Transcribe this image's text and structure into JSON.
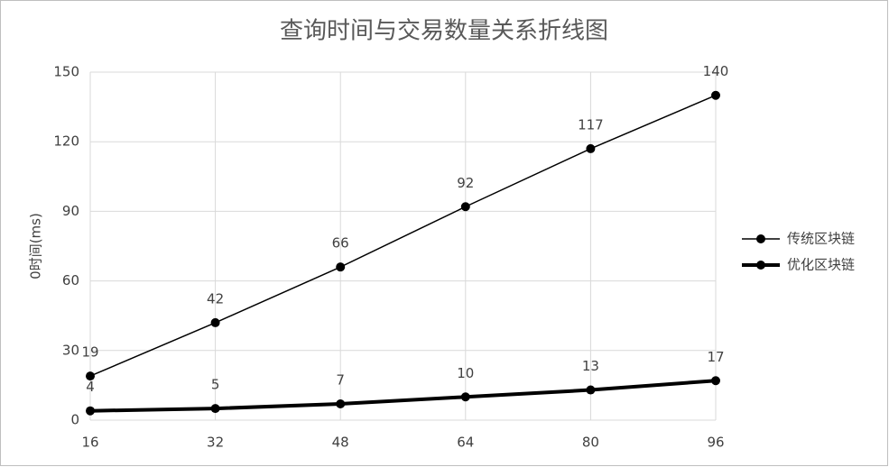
{
  "chart_data": {
    "type": "line",
    "title": "查询时间与交易数量关系折线图",
    "y_label": "0时间(ms)",
    "x": [
      16,
      32,
      48,
      64,
      80,
      96
    ],
    "series": [
      {
        "name": "传统区块链",
        "color": "#000000",
        "line_width": 1.5,
        "values": [
          19,
          42,
          66,
          92,
          117,
          140
        ]
      },
      {
        "name": "优化区块链",
        "color": "#000000",
        "line_width": 4,
        "values": [
          4,
          5,
          7,
          10,
          13,
          17
        ]
      }
    ],
    "xlim": [
      16,
      96
    ],
    "xticks": [
      16,
      32,
      48,
      64,
      80,
      96
    ],
    "ylim": [
      0,
      150
    ],
    "yticks": [
      0,
      30,
      60,
      90,
      120,
      150
    ],
    "grid": true,
    "legend": "right"
  }
}
